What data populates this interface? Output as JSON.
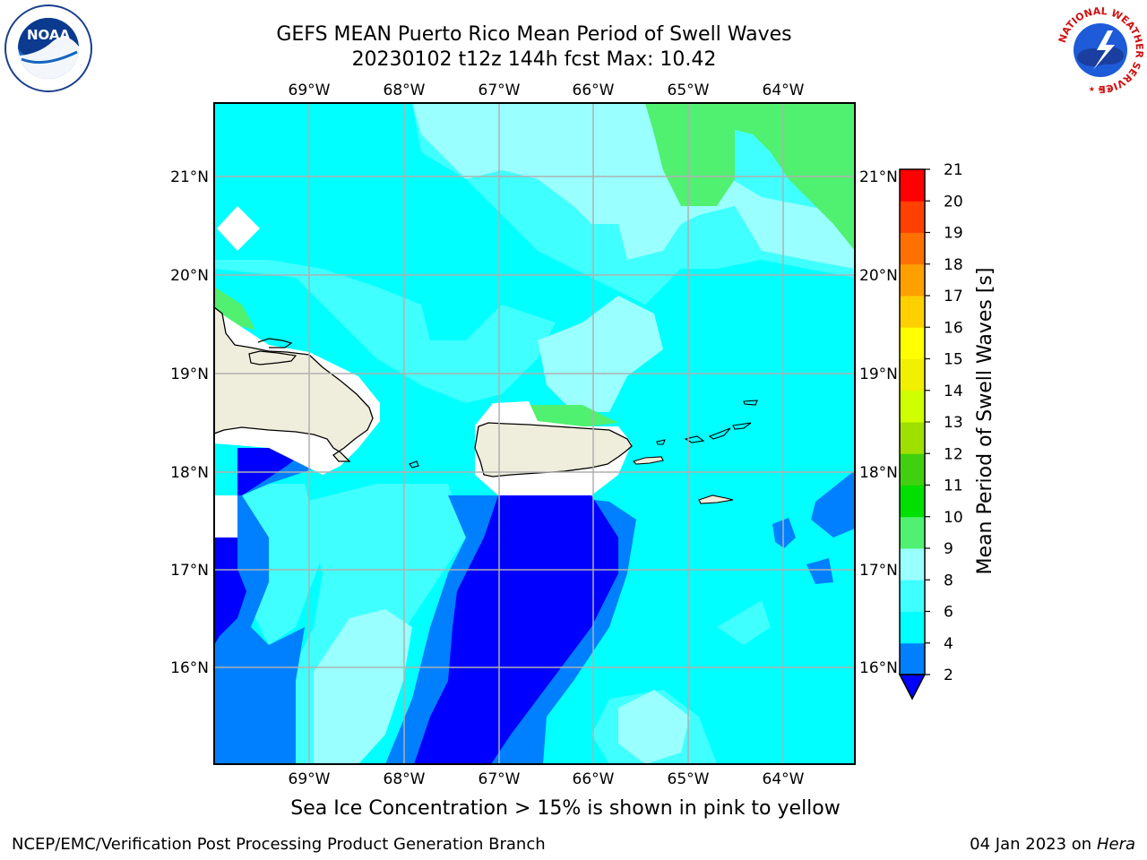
{
  "header": {
    "title_line1": "GEFS MEAN Puerto Rico Mean Period of Swell Waves",
    "title_line2": "20230102 t12z 144h fcst   Max: 10.42"
  },
  "map": {
    "projection": "lat-lon",
    "lon_range": [
      -70.0,
      -63.25
    ],
    "lat_range": [
      15.0,
      21.75
    ],
    "lon_ticks": [
      "69°W",
      "68°W",
      "67°W",
      "66°W",
      "65°W",
      "64°W"
    ],
    "lon_tick_values": [
      -69,
      -68,
      -67,
      -66,
      -65,
      -64
    ],
    "lat_ticks": [
      "21°N",
      "20°N",
      "19°N",
      "18°N",
      "17°N",
      "16°N"
    ],
    "lat_tick_values": [
      21,
      20,
      19,
      18,
      17,
      16
    ],
    "grid": true,
    "land_color": "#efeedc",
    "ocean_base_color": "#00ffff"
  },
  "colorbar": {
    "label": "Mean Period of Swell Waves [s]",
    "tick_labels": [
      "2",
      "4",
      "6",
      "8",
      "9",
      "10",
      "11",
      "12",
      "13",
      "14",
      "15",
      "16",
      "17",
      "18",
      "19",
      "20",
      "21"
    ],
    "colors": [
      "#0000ff",
      "#0080ff",
      "#00ffff",
      "#40ffff",
      "#99ffff",
      "#50f070",
      "#00e000",
      "#40d010",
      "#a0e000",
      "#d0ff00",
      "#f0f000",
      "#ffff00",
      "#ffd000",
      "#ffa000",
      "#ff7000",
      "#ff4000",
      "#ff0000"
    ],
    "extend": "min"
  },
  "note": "Sea Ice Concentration > 15% is shown in pink to yellow",
  "footer": {
    "left": "NCEP/EMC/Verification Post Processing Product Generation Branch",
    "right_prefix": "04 Jan 2023 on ",
    "right_italic": "Hera"
  },
  "logos": {
    "left": "NOAA",
    "right_ring_text": "NATIONAL WEATHER SERVICE"
  }
}
